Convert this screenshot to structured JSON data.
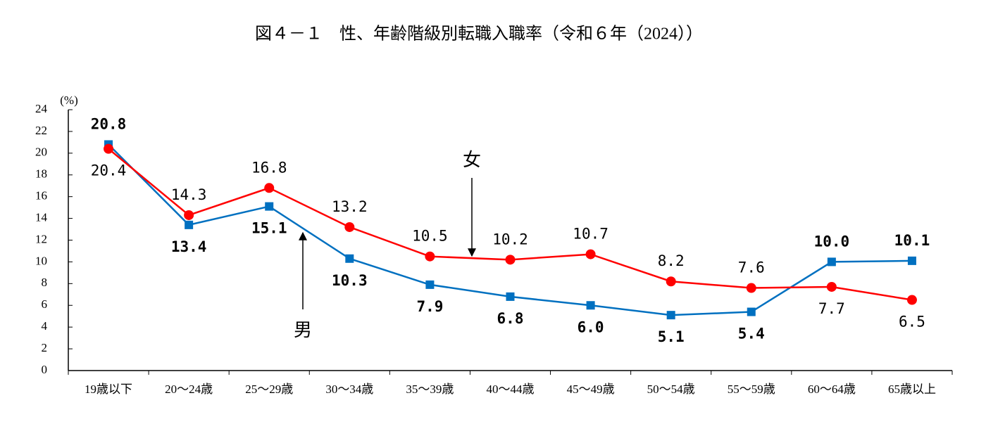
{
  "chart_data": {
    "type": "line",
    "title": "図４－１　性、年齢階級別転職入職率（令和６年（2024））",
    "y_unit": "(%)",
    "categories": [
      "19歳以下",
      "20～24歳",
      "25～29歳",
      "30～34歳",
      "35～39歳",
      "40～44歳",
      "45～49歳",
      "50～54歳",
      "55～59歳",
      "60～64歳",
      "65歳以上"
    ],
    "series": [
      {
        "name": "男",
        "color": "#0070c0",
        "marker": "square",
        "values": [
          20.8,
          13.4,
          15.1,
          10.3,
          7.9,
          6.8,
          6.0,
          5.1,
          5.4,
          10.0,
          10.1
        ],
        "value_labels": [
          "20.8",
          "13.4",
          "15.1",
          "10.3",
          "7.9",
          "6.8",
          "6.0",
          "5.1",
          "5.4",
          "10.0",
          "10.1"
        ]
      },
      {
        "name": "女",
        "color": "#ff0000",
        "marker": "circle",
        "values": [
          20.4,
          14.3,
          16.8,
          13.2,
          10.5,
          10.2,
          10.7,
          8.2,
          7.6,
          7.7,
          6.5
        ],
        "value_labels": [
          "20.4",
          "14.3",
          "16.8",
          "13.2",
          "10.5",
          "10.2",
          "10.7",
          "8.2",
          "7.6",
          "7.7",
          "6.5"
        ]
      }
    ],
    "ylim": [
      0,
      24
    ],
    "yticks": [
      0,
      2,
      4,
      6,
      8,
      10,
      12,
      14,
      16,
      18,
      20,
      22,
      24
    ],
    "grid": false
  }
}
